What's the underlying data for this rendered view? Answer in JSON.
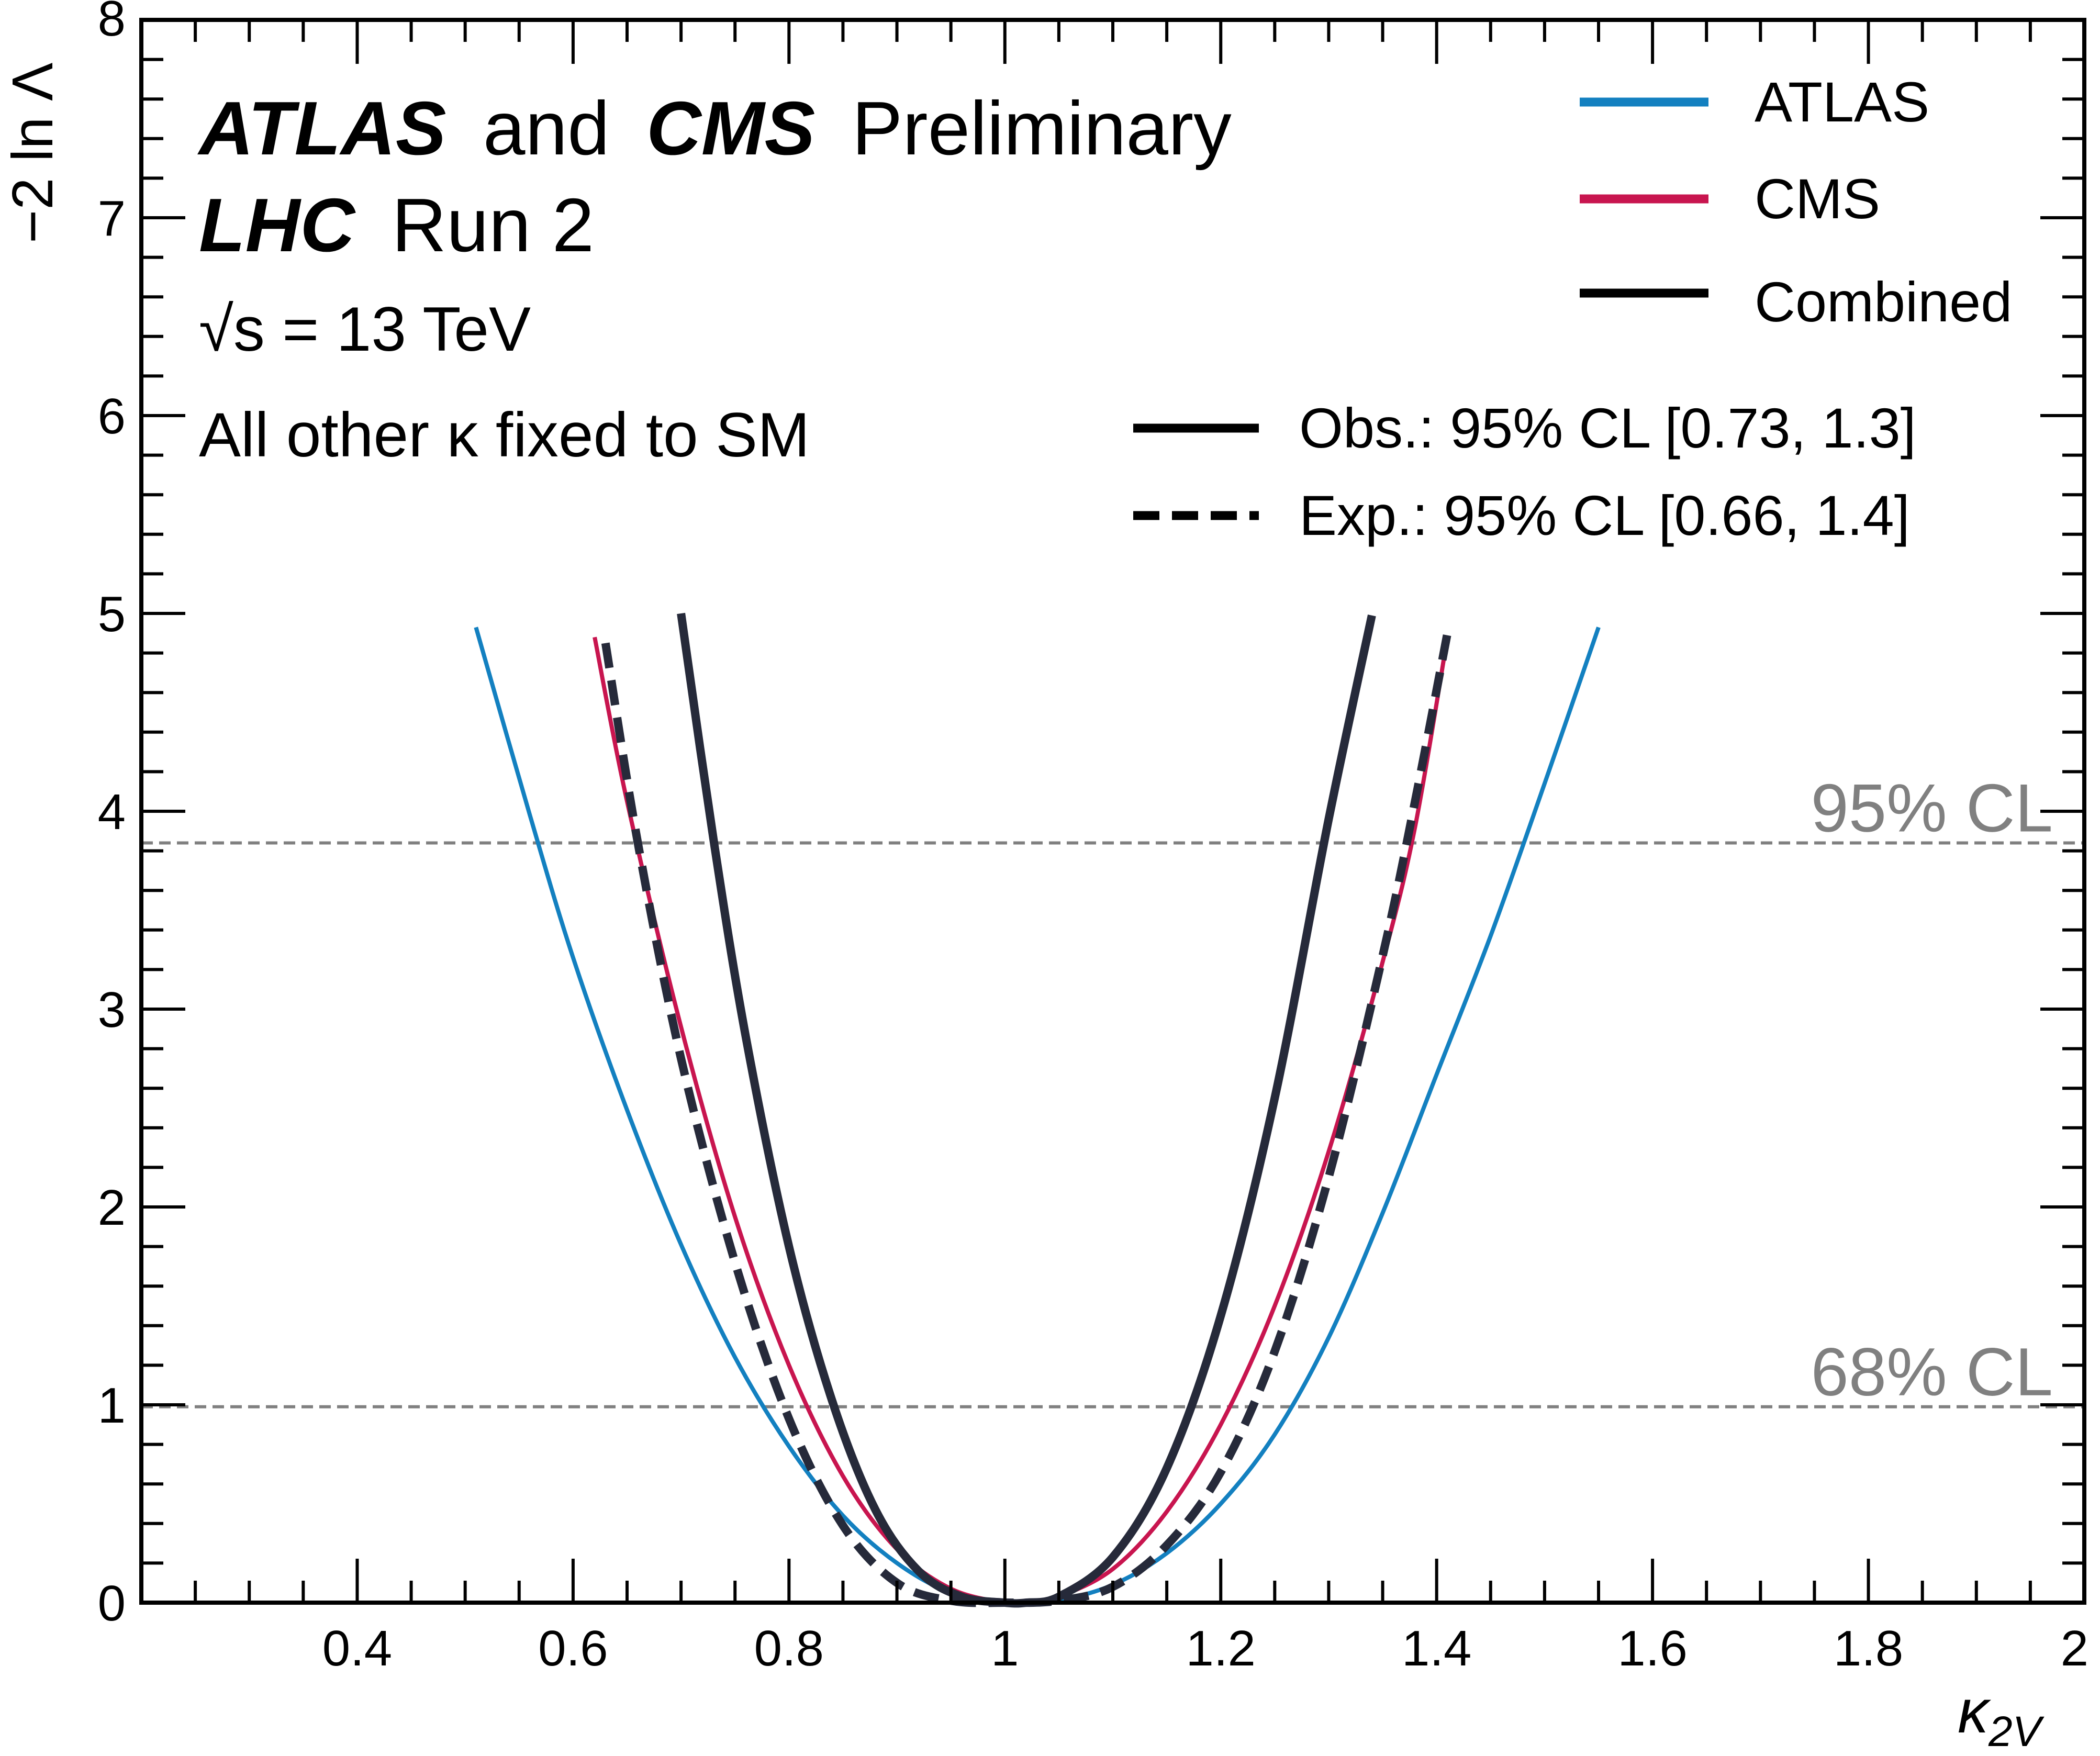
{
  "chart_data": {
    "type": "line",
    "xlabel": "κ",
    "xlabel_sub": "2V",
    "ylabel": "−2 ln Λ",
    "xlim": [
      0.2,
      2.0
    ],
    "ylim": [
      0,
      8
    ],
    "xticks": [
      0.4,
      0.6,
      0.8,
      1,
      1.2,
      1.4,
      1.6,
      1.8,
      2
    ],
    "xtick_labels": [
      "0.4",
      "0.6",
      "0.8",
      "1",
      "1.2",
      "1.4",
      "1.6",
      "1.8",
      "2"
    ],
    "yticks": [
      0,
      1,
      2,
      3,
      4,
      5,
      6,
      7,
      8
    ],
    "ytick_labels": [
      "0",
      "1",
      "2",
      "3",
      "4",
      "5",
      "6",
      "7",
      "8"
    ],
    "annotations": {
      "exp1": "ATLAS",
      "and": "and",
      "exp2": "CMS",
      "prelim": "Preliminary",
      "lhc": "LHC",
      "run": "Run 2",
      "energy": "√s = 13 TeV",
      "kappa_note": "All other κ fixed to SM"
    },
    "reference_lines": [
      {
        "label": "95% CL",
        "y": 3.84
      },
      {
        "label": "68% CL",
        "y": 0.99
      }
    ],
    "legend": {
      "series": [
        {
          "name": "ATLAS",
          "color": "#1380c0"
        },
        {
          "name": "CMS",
          "color": "#c8154f"
        },
        {
          "name": "Combined",
          "color": "#262a3a"
        }
      ],
      "styles": [
        {
          "label": "Obs.: 95% CL [0.73, 1.3]",
          "style": "solid"
        },
        {
          "label": "Exp.:  95% CL [0.66, 1.4]",
          "style": "dashed"
        }
      ]
    },
    "series": [
      {
        "name": "ATLAS",
        "style": "solid",
        "color": "#1380c0",
        "x": [
          0.51,
          0.56,
          0.6,
          0.65,
          0.7,
          0.75,
          0.8,
          0.85,
          0.9,
          0.95,
          1.0,
          1.02,
          1.05,
          1.1,
          1.15,
          1.2,
          1.25,
          1.3,
          1.35,
          1.4,
          1.45,
          1.5,
          1.55
        ],
        "y": [
          4.93,
          3.98,
          3.26,
          2.49,
          1.81,
          1.24,
          0.79,
          0.44,
          0.2,
          0.05,
          0.0,
          0.0,
          0.01,
          0.09,
          0.25,
          0.5,
          0.85,
          1.34,
          1.97,
          2.67,
          3.37,
          4.14,
          4.93
        ]
      },
      {
        "name": "CMS",
        "style": "solid",
        "color": "#c8154f",
        "x": [
          0.62,
          0.65,
          0.7,
          0.75,
          0.8,
          0.85,
          0.9,
          0.95,
          1.0,
          1.02,
          1.05,
          1.1,
          1.15,
          1.2,
          1.25,
          1.3,
          1.35,
          1.38,
          1.41
        ],
        "y": [
          4.88,
          4.05,
          2.91,
          1.95,
          1.2,
          0.64,
          0.27,
          0.07,
          0.0,
          0.0,
          0.03,
          0.17,
          0.46,
          0.9,
          1.5,
          2.28,
          3.24,
          3.92,
          4.88
        ]
      },
      {
        "name": "Combined",
        "style": "solid",
        "color": "#262a3a",
        "x": [
          0.7,
          0.73,
          0.76,
          0.8,
          0.84,
          0.88,
          0.92,
          0.96,
          1.0,
          1.02,
          1.05,
          1.1,
          1.15,
          1.2,
          1.25,
          1.3,
          1.34
        ],
        "y": [
          5.0,
          3.86,
          2.86,
          1.8,
          1.02,
          0.47,
          0.16,
          0.03,
          0.0,
          0.0,
          0.03,
          0.23,
          0.68,
          1.45,
          2.55,
          3.96,
          4.99
        ]
      },
      {
        "name": "Expected",
        "style": "dashed",
        "color": "#262a3a",
        "x": [
          0.63,
          0.66,
          0.7,
          0.75,
          0.8,
          0.85,
          0.9,
          0.95,
          1.0,
          1.05,
          1.1,
          1.15,
          1.2,
          1.25,
          1.3,
          1.35,
          1.38,
          1.41
        ],
        "y": [
          4.85,
          3.84,
          2.75,
          1.72,
          0.93,
          0.39,
          0.1,
          0.01,
          0.0,
          0.01,
          0.08,
          0.29,
          0.66,
          1.27,
          2.15,
          3.27,
          4.05,
          4.9
        ]
      }
    ]
  }
}
